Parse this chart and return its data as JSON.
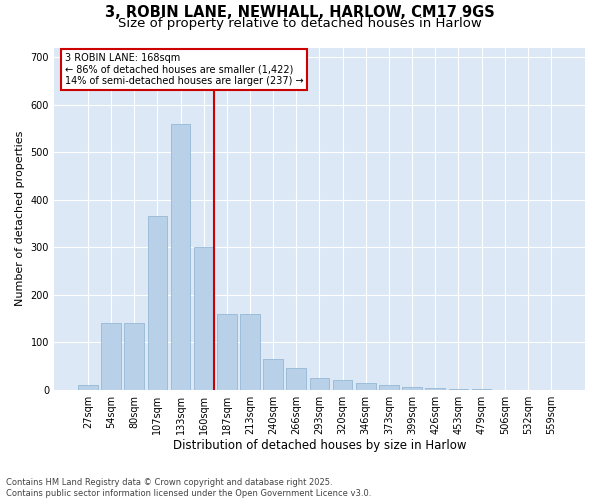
{
  "title1": "3, ROBIN LANE, NEWHALL, HARLOW, CM17 9GS",
  "title2": "Size of property relative to detached houses in Harlow",
  "xlabel": "Distribution of detached houses by size in Harlow",
  "ylabel": "Number of detached properties",
  "categories": [
    "27sqm",
    "54sqm",
    "80sqm",
    "107sqm",
    "133sqm",
    "160sqm",
    "187sqm",
    "213sqm",
    "240sqm",
    "266sqm",
    "293sqm",
    "320sqm",
    "346sqm",
    "373sqm",
    "399sqm",
    "426sqm",
    "453sqm",
    "479sqm",
    "506sqm",
    "532sqm",
    "559sqm"
  ],
  "values": [
    10,
    140,
    140,
    365,
    560,
    300,
    160,
    160,
    65,
    45,
    25,
    20,
    15,
    10,
    5,
    3,
    2,
    1,
    0,
    0,
    0
  ],
  "bar_color": "#b8d0e8",
  "bar_edge_color": "#8ab0d0",
  "bg_color": "#dce8f5",
  "grid_color": "#ffffff",
  "vline_color": "#cc0000",
  "annotation_text": "3 ROBIN LANE: 168sqm\n← 86% of detached houses are smaller (1,422)\n14% of semi-detached houses are larger (237) →",
  "annotation_box_color": "#cc0000",
  "ylim": [
    0,
    720
  ],
  "yticks": [
    0,
    100,
    200,
    300,
    400,
    500,
    600,
    700
  ],
  "footer": "Contains HM Land Registry data © Crown copyright and database right 2025.\nContains public sector information licensed under the Open Government Licence v3.0.",
  "title1_fontsize": 10.5,
  "title2_fontsize": 9.5,
  "xlabel_fontsize": 8.5,
  "ylabel_fontsize": 8,
  "tick_fontsize": 7,
  "footer_fontsize": 6
}
